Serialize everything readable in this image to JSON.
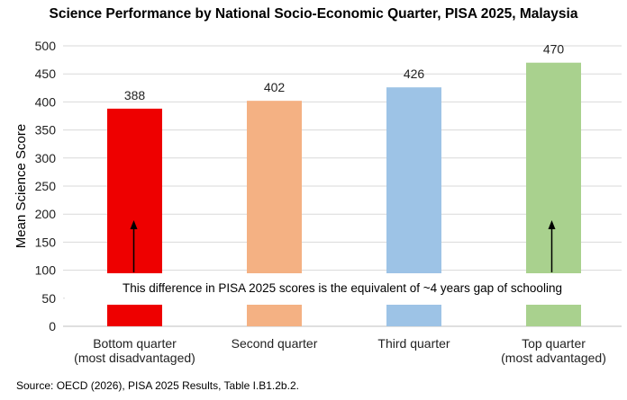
{
  "chart_data": {
    "type": "bar",
    "title": "Science Performance by National Socio-Economic Quarter, PISA 2025, Malaysia",
    "ylabel": "Mean Science Score",
    "xlabel": "",
    "ylim": [
      0,
      500
    ],
    "yticks": [
      0,
      50,
      100,
      150,
      200,
      250,
      300,
      350,
      400,
      450,
      500
    ],
    "grid": true,
    "categories": [
      [
        "Bottom quarter",
        "(most disadvantaged)"
      ],
      [
        "Second quarter"
      ],
      [
        "Third quarter"
      ],
      [
        "Top quarter",
        "(most advantaged)"
      ]
    ],
    "values": [
      388,
      402,
      426,
      470
    ],
    "colors": [
      "#EE0000",
      "#F4B183",
      "#9DC3E6",
      "#A9D18E"
    ],
    "annotation": "This difference in PISA 2025 scores is the equivalent of ~4 years gap of schooling",
    "source": "Source: OECD (2026), PISA 2025 Results, Table I.B1.2b.2."
  }
}
